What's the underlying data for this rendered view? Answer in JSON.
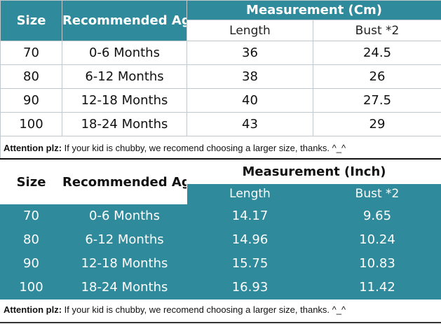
{
  "cm_table": {
    "header": {
      "size": "Size",
      "age": "Recommended Age",
      "measurement": "Measurement (Cm)",
      "length": "Length",
      "bust": "Bust *2"
    },
    "rows": [
      {
        "size": "70",
        "age": "0-6 Months",
        "length": "36",
        "bust": "24.5"
      },
      {
        "size": "80",
        "age": "6-12 Months",
        "length": "38",
        "bust": "26"
      },
      {
        "size": "90",
        "age": "12-18 Months",
        "length": "40",
        "bust": "27.5"
      },
      {
        "size": "100",
        "age": "18-24 Months",
        "length": "43",
        "bust": "29"
      }
    ],
    "note_label": "Attention plz:",
    "note_text": " If your kid is chubby, we recomend choosing a larger size, thanks. ^_^"
  },
  "inch_table": {
    "header": {
      "size": "Size",
      "age": "Recommended Age",
      "measurement": "Measurement (Inch)",
      "length": "Length",
      "bust": "Bust *2"
    },
    "rows": [
      {
        "size": "70",
        "age": "0-6 Months",
        "length": "14.17",
        "bust": "9.65"
      },
      {
        "size": "80",
        "age": "6-12 Months",
        "length": "14.96",
        "bust": "10.24"
      },
      {
        "size": "90",
        "age": "12-18 Months",
        "length": "15.75",
        "bust": "10.83"
      },
      {
        "size": "100",
        "age": "18-24 Months",
        "length": "16.93",
        "bust": "11.42"
      }
    ],
    "note_label": "Attention plz:",
    "note_text": " If your kid is chubby, we recomend choosing a larger size, thanks. ^_^"
  },
  "colors": {
    "teal": "#2f8a9b",
    "white": "#ffffff",
    "text": "#111111"
  }
}
